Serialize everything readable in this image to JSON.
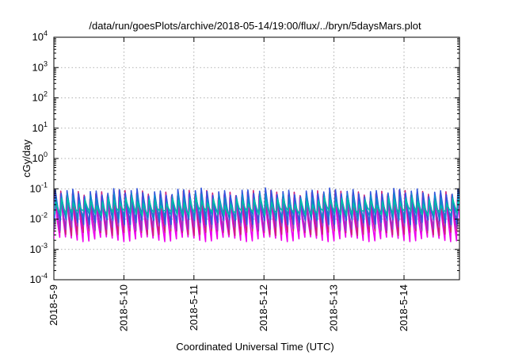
{
  "chart_data": {
    "type": "line",
    "title": "/data/run/goesPlots/archive/2018-05-14/19:00/flux/../bryn/5daysMars.plot",
    "xlabel": "Coordinated Universal Time (UTC)",
    "ylabel": "cGy/day",
    "yscale": "log",
    "ylim": [
      0.0001,
      10000
    ],
    "xlim": [
      "2018-05-09",
      "2018-05-14T19:00"
    ],
    "grid": true,
    "legend": "none",
    "x_ticks": [
      {
        "value": "2018-05-09",
        "label": "2018-5-9"
      },
      {
        "value": "2018-05-10",
        "label": "2018-5-10"
      },
      {
        "value": "2018-05-11",
        "label": "2018-5-11"
      },
      {
        "value": "2018-05-12",
        "label": "2018-5-12"
      },
      {
        "value": "2018-05-13",
        "label": "2018-5-13"
      },
      {
        "value": "2018-05-14",
        "label": "2018-5-14"
      }
    ],
    "y_ticks": [
      {
        "value": 0.0001,
        "base": "10",
        "exp": "-4"
      },
      {
        "value": 0.001,
        "base": "10",
        "exp": "-3"
      },
      {
        "value": 0.01,
        "base": "10",
        "exp": "-2"
      },
      {
        "value": 0.1,
        "base": "10",
        "exp": "-1"
      },
      {
        "value": 1,
        "base": "10",
        "exp": "0"
      },
      {
        "value": 10,
        "base": "10",
        "exp": "1"
      },
      {
        "value": 100,
        "base": "10",
        "exp": "2"
      },
      {
        "value": 1000,
        "base": "10",
        "exp": "3"
      },
      {
        "value": 10000,
        "base": "10",
        "exp": "4"
      }
    ],
    "pattern": {
      "start": "2018-05-09T00:00",
      "cycle_hours": 2,
      "peak_minutes": 18
    },
    "series": [
      {
        "color": "#ee00ee",
        "peak_value": 0.05,
        "trough_value": 0.0022
      },
      {
        "color": "#cc2277",
        "peak_value": 0.07,
        "trough_value": 0.0035
      },
      {
        "color": "#9933cc",
        "peak_value": 0.065,
        "trough_value": 0.005
      },
      {
        "color": "#3355dd",
        "peak_value": 0.08,
        "trough_value": 0.008
      },
      {
        "color": "#1188cc",
        "peak_value": 0.055,
        "trough_value": 0.012
      },
      {
        "color": "#00bbaa",
        "peak_value": 0.04,
        "trough_value": 0.016
      }
    ]
  }
}
